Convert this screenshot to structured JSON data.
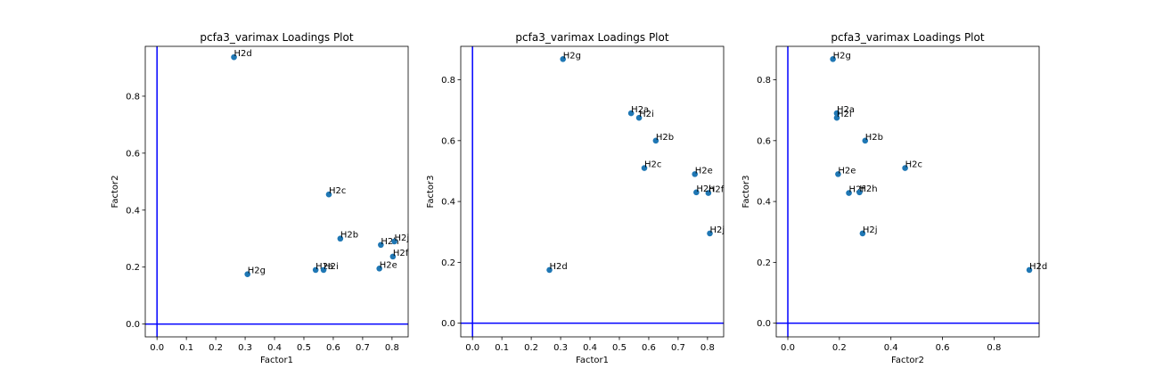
{
  "chart_data": [
    {
      "type": "scatter",
      "title": "pcfa3_varimax Loadings Plot",
      "xlabel": "Factor1",
      "ylabel": "Factor2",
      "xlim": [
        -0.04,
        0.855
      ],
      "ylim": [
        -0.045,
        0.975
      ],
      "xticks": [
        0.0,
        0.1,
        0.2,
        0.3,
        0.4,
        0.5,
        0.6,
        0.7,
        0.8
      ],
      "yticks": [
        0.0,
        0.2,
        0.4,
        0.6,
        0.8
      ],
      "reference_lines": {
        "x": 0,
        "y": 0,
        "color": "#0000ff"
      },
      "marker_color": "#1f77b4",
      "points": [
        {
          "label": "H2a",
          "x": 0.54,
          "y": 0.19
        },
        {
          "label": "H2b",
          "x": 0.624,
          "y": 0.3
        },
        {
          "label": "H2c",
          "x": 0.585,
          "y": 0.455
        },
        {
          "label": "H2d",
          "x": 0.262,
          "y": 0.937
        },
        {
          "label": "H2e",
          "x": 0.757,
          "y": 0.195
        },
        {
          "label": "H2f",
          "x": 0.803,
          "y": 0.237
        },
        {
          "label": "H2g",
          "x": 0.308,
          "y": 0.175
        },
        {
          "label": "H2h",
          "x": 0.762,
          "y": 0.278
        },
        {
          "label": "H2i",
          "x": 0.567,
          "y": 0.19
        },
        {
          "label": "H2j",
          "x": 0.808,
          "y": 0.29
        }
      ]
    },
    {
      "type": "scatter",
      "title": "pcfa3_varimax Loadings Plot",
      "xlabel": "Factor1",
      "ylabel": "Factor3",
      "xlim": [
        -0.04,
        0.855
      ],
      "ylim": [
        -0.045,
        0.91
      ],
      "xticks": [
        0.0,
        0.1,
        0.2,
        0.3,
        0.4,
        0.5,
        0.6,
        0.7,
        0.8
      ],
      "yticks": [
        0.0,
        0.2,
        0.4,
        0.6,
        0.8
      ],
      "reference_lines": {
        "x": 0,
        "y": 0,
        "color": "#0000ff"
      },
      "marker_color": "#1f77b4",
      "points": [
        {
          "label": "H2a",
          "x": 0.54,
          "y": 0.69
        },
        {
          "label": "H2b",
          "x": 0.624,
          "y": 0.6
        },
        {
          "label": "H2c",
          "x": 0.585,
          "y": 0.51
        },
        {
          "label": "H2d",
          "x": 0.262,
          "y": 0.175
        },
        {
          "label": "H2e",
          "x": 0.757,
          "y": 0.49
        },
        {
          "label": "H2f",
          "x": 0.803,
          "y": 0.428
        },
        {
          "label": "H2g",
          "x": 0.308,
          "y": 0.868
        },
        {
          "label": "H2h",
          "x": 0.762,
          "y": 0.43
        },
        {
          "label": "H2i",
          "x": 0.567,
          "y": 0.675
        },
        {
          "label": "H2j",
          "x": 0.808,
          "y": 0.295
        }
      ]
    },
    {
      "type": "scatter",
      "title": "pcfa3_varimax Loadings Plot",
      "xlabel": "Factor2",
      "ylabel": "Factor3",
      "xlim": [
        -0.045,
        0.975
      ],
      "ylim": [
        -0.045,
        0.91
      ],
      "xticks": [
        0.0,
        0.2,
        0.4,
        0.6,
        0.8
      ],
      "yticks": [
        0.0,
        0.2,
        0.4,
        0.6,
        0.8
      ],
      "reference_lines": {
        "x": 0,
        "y": 0,
        "color": "#0000ff"
      },
      "marker_color": "#1f77b4",
      "points": [
        {
          "label": "H2a",
          "x": 0.19,
          "y": 0.69
        },
        {
          "label": "H2b",
          "x": 0.3,
          "y": 0.6
        },
        {
          "label": "H2c",
          "x": 0.455,
          "y": 0.51
        },
        {
          "label": "H2d",
          "x": 0.937,
          "y": 0.175
        },
        {
          "label": "H2e",
          "x": 0.195,
          "y": 0.49
        },
        {
          "label": "H2f",
          "x": 0.237,
          "y": 0.428
        },
        {
          "label": "H2g",
          "x": 0.175,
          "y": 0.868
        },
        {
          "label": "H2h",
          "x": 0.278,
          "y": 0.43
        },
        {
          "label": "H2i",
          "x": 0.19,
          "y": 0.675
        },
        {
          "label": "H2j",
          "x": 0.29,
          "y": 0.295
        }
      ]
    }
  ]
}
